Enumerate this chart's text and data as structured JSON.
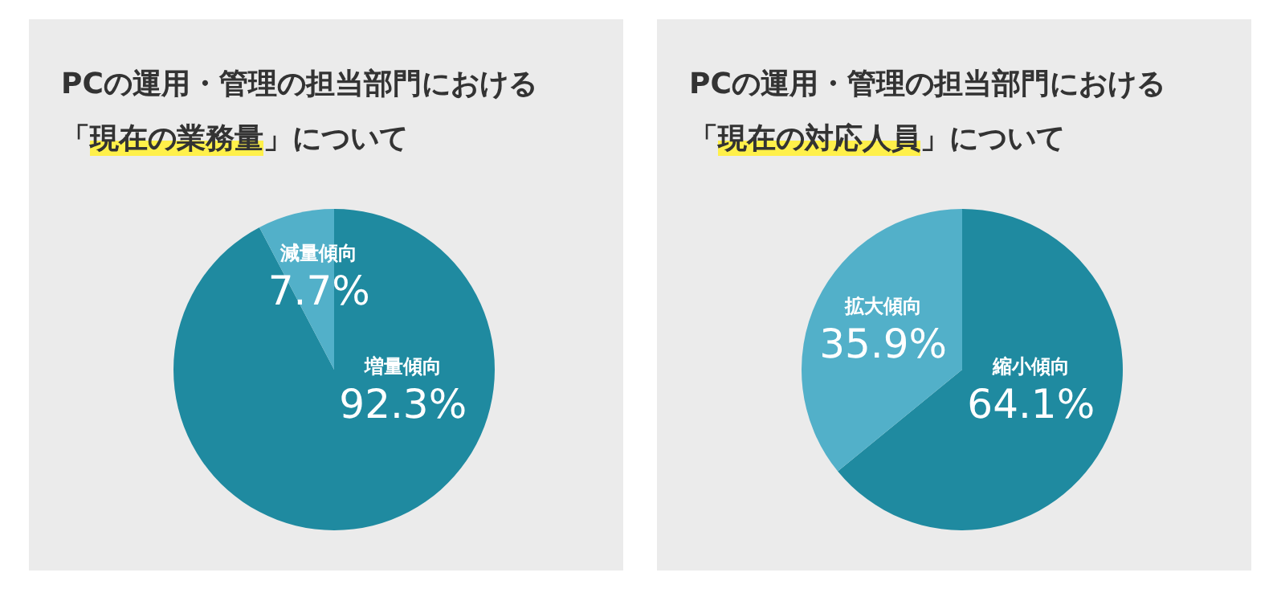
{
  "chart_data": [
    {
      "type": "pie",
      "title": "PCの運用・管理の担当部門における「現在の業務量」について",
      "categories": [
        "増量傾向",
        "減量傾向"
      ],
      "values": [
        92.3,
        7.7
      ],
      "value_labels": [
        "92.3%",
        "7.7%"
      ],
      "colors": [
        "#1f8aa0",
        "#52b0c9"
      ]
    },
    {
      "type": "pie",
      "title": "PCの運用・管理の担当部門における「現在の対応人員」について",
      "categories": [
        "縮小傾向",
        "拡大傾向"
      ],
      "values": [
        64.1,
        35.9
      ],
      "value_labels": [
        "64.1%",
        "35.9%"
      ],
      "colors": [
        "#1f8aa0",
        "#52b0c9"
      ]
    }
  ]
}
